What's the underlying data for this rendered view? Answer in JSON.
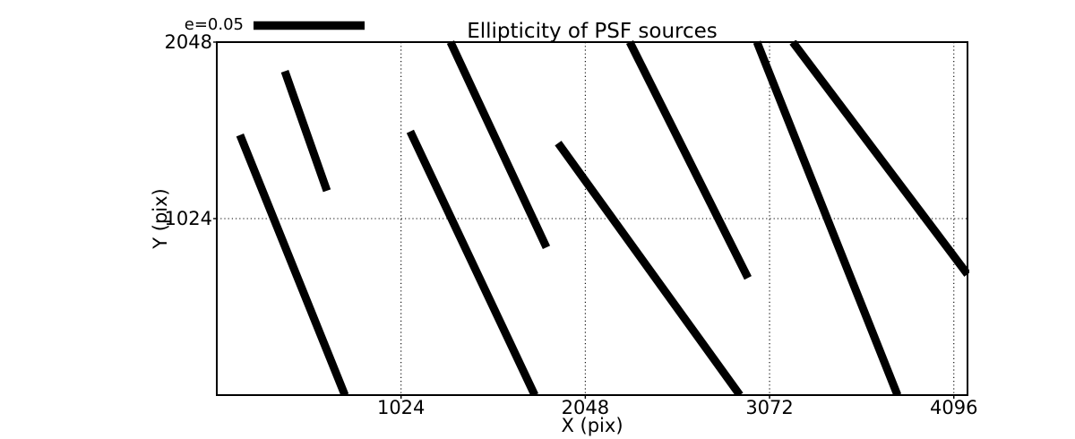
{
  "figure": {
    "title": "Ellipticity of PSF sources",
    "scale_legend": {
      "label": "e=0.05",
      "e_value": 0.05
    }
  },
  "chart_data": {
    "type": "line",
    "subtype": "psf-ellipticity-whisker-plot",
    "title": "Ellipticity of PSF sources",
    "xlabel": "X (pix)",
    "ylabel": "Y (pix)",
    "xlim": [
      0,
      4172
    ],
    "ylim": [
      0,
      2048
    ],
    "xticks": [
      1024,
      2048,
      3072,
      4096
    ],
    "yticks": [
      1024,
      2048
    ],
    "grid": true,
    "grid_linestyle": "dotted",
    "line_color": "#000000",
    "background_color": "#ffffff",
    "scale_legend": {
      "label": "e=0.05",
      "e_value": 0.05
    },
    "segments": [
      {
        "x1": 129,
        "y1": 1509,
        "x2": 712,
        "y2": 0
      },
      {
        "x1": 378,
        "y1": 1879,
        "x2": 612,
        "y2": 1186
      },
      {
        "x1": 1075,
        "y1": 1530,
        "x2": 1767,
        "y2": 0
      },
      {
        "x1": 1299,
        "y1": 2048,
        "x2": 1832,
        "y2": 857
      },
      {
        "x1": 1897,
        "y1": 1462,
        "x2": 2907,
        "y2": 0
      },
      {
        "x1": 2295,
        "y1": 2048,
        "x2": 2952,
        "y2": 680
      },
      {
        "x1": 3002,
        "y1": 2048,
        "x2": 3783,
        "y2": 0
      },
      {
        "x1": 3201,
        "y1": 2048,
        "x2": 4172,
        "y2": 701
      }
    ]
  }
}
